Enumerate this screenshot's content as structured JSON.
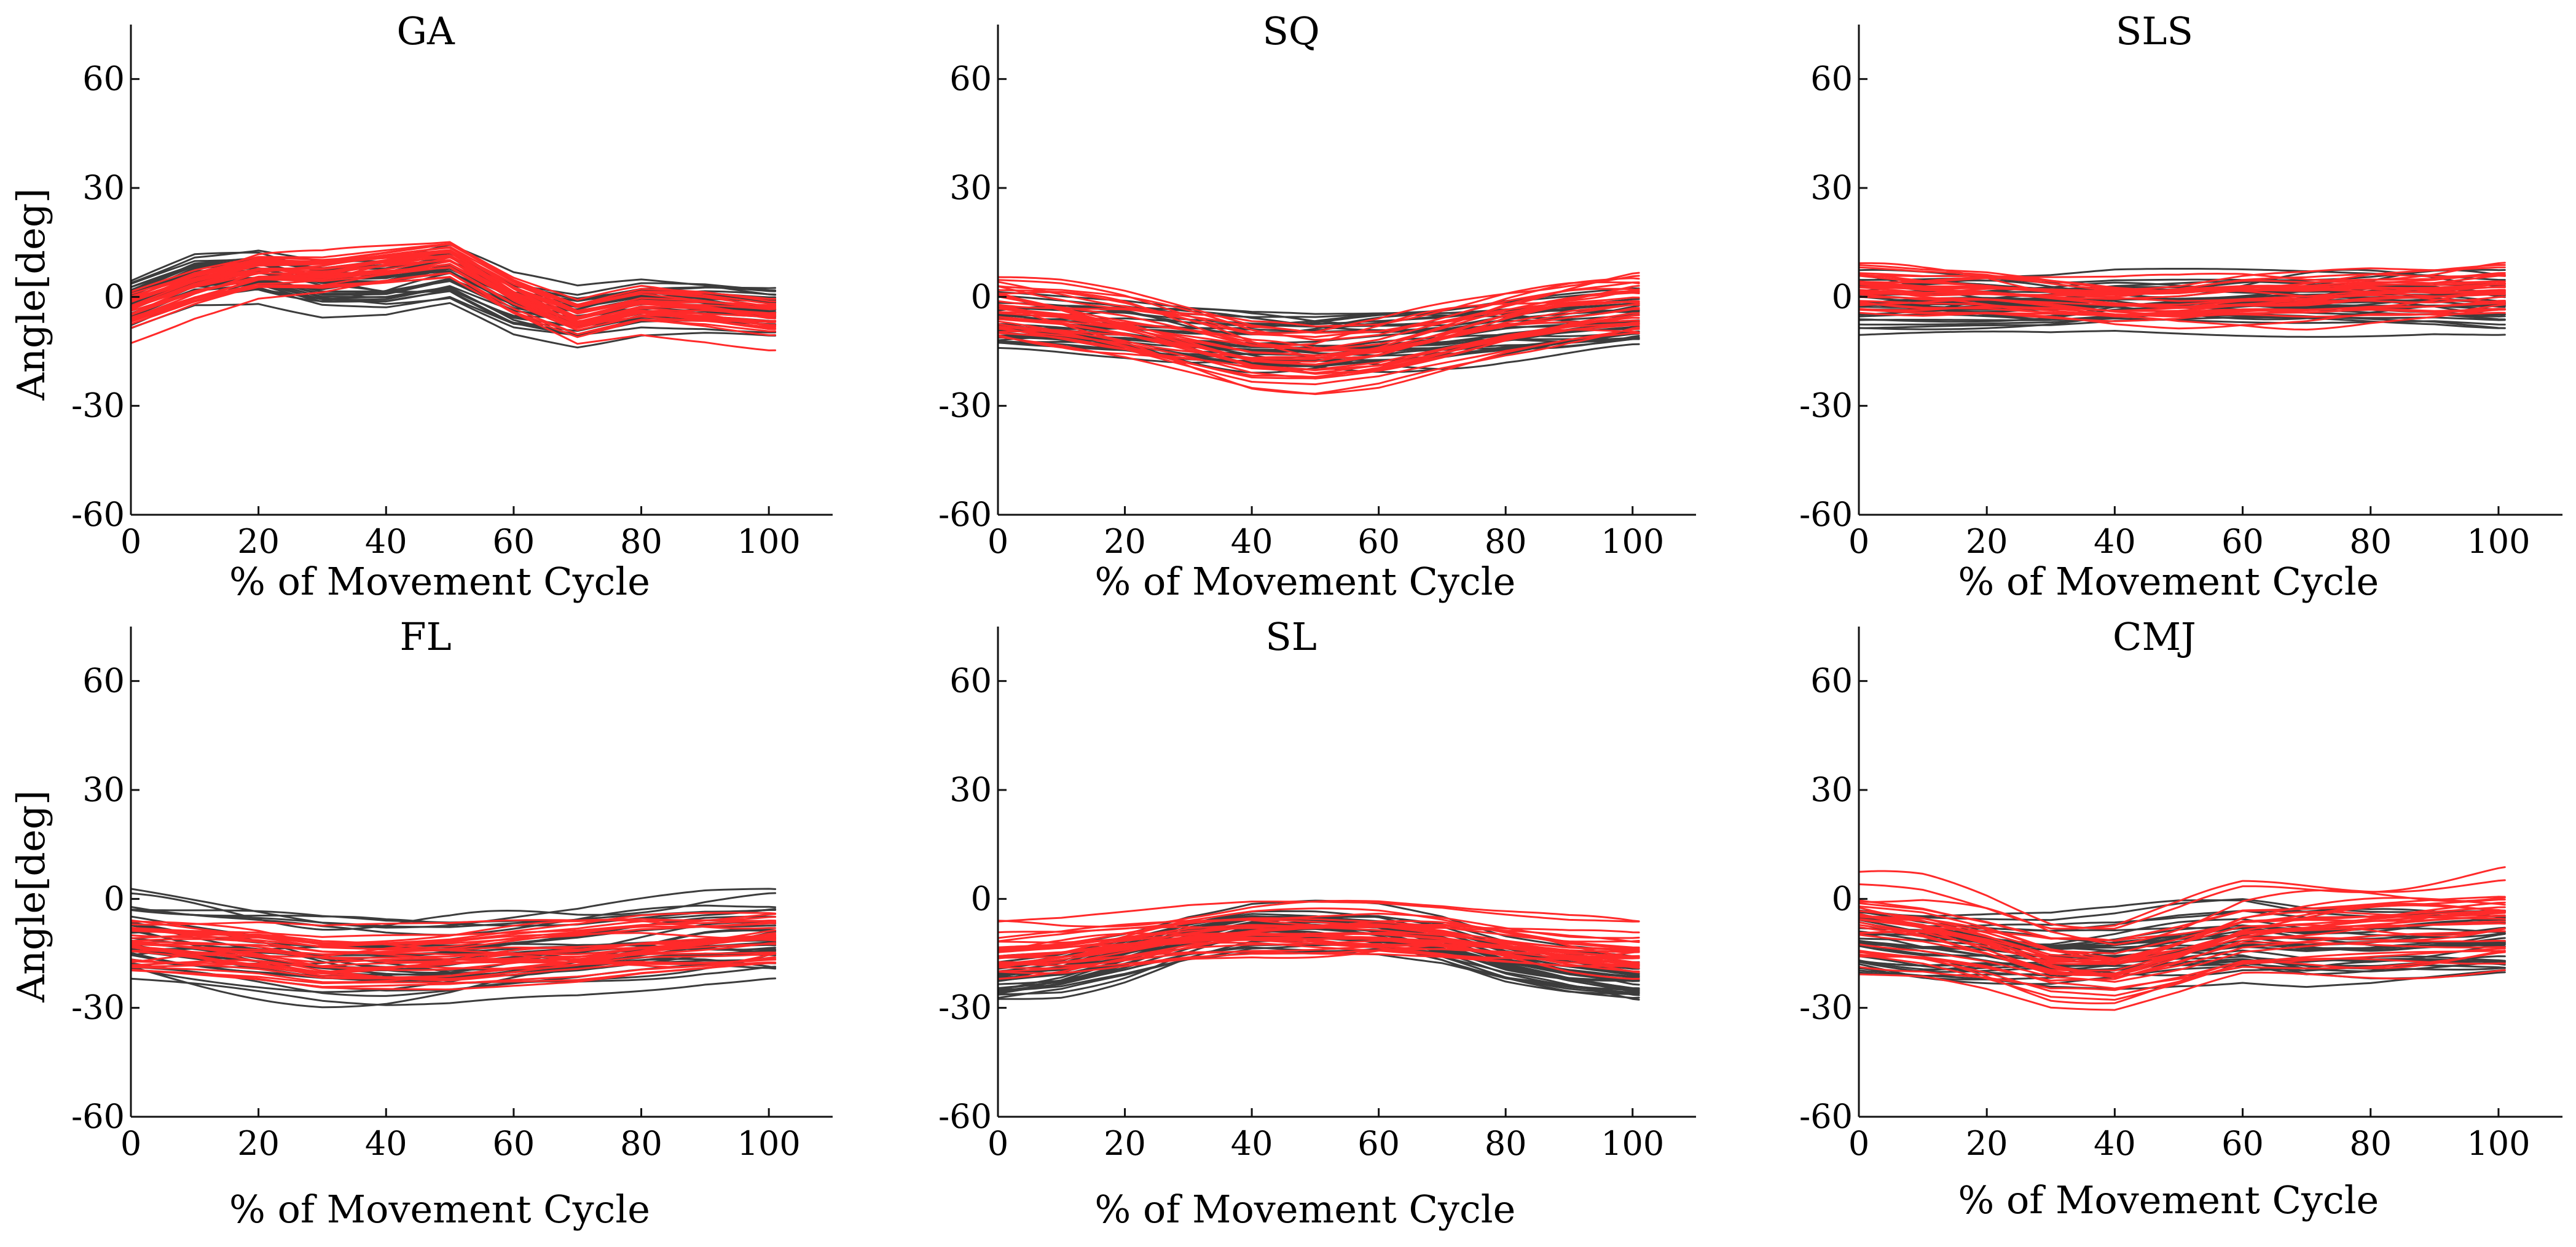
{
  "chart_data": [
    {
      "type": "line",
      "title": "GA",
      "xlabel": "% of Movement Cycle",
      "ylabel": "Angle[deg]",
      "xlim": [
        0,
        110
      ],
      "ylim": [
        -60,
        75
      ],
      "xticks": [
        0,
        20,
        40,
        60,
        80,
        100
      ],
      "yticks": [
        -60,
        -30,
        0,
        30,
        60
      ],
      "series": [
        {
          "name": "group-gray",
          "color": "#3c3c3c",
          "count": 30,
          "x": [
            0,
            10,
            20,
            30,
            40,
            50,
            60,
            70,
            80,
            90,
            100
          ],
          "mean": [
            -2,
            5,
            6,
            2,
            2,
            5,
            -3,
            -6,
            -3,
            -3,
            -4
          ],
          "spread": 7
        },
        {
          "name": "group-red",
          "color": "#ff2a2a",
          "count": 30,
          "x": [
            0,
            10,
            20,
            30,
            40,
            50,
            60,
            70,
            80,
            90,
            100
          ],
          "mean": [
            -4,
            2,
            6,
            6,
            8,
            10,
            0,
            -7,
            -3,
            -4,
            -6
          ],
          "spread": 6
        }
      ]
    },
    {
      "type": "line",
      "title": "SQ",
      "xlabel": "% of Movement Cycle",
      "ylabel": "",
      "xlim": [
        0,
        110
      ],
      "ylim": [
        -60,
        75
      ],
      "xticks": [
        0,
        20,
        40,
        60,
        80,
        100
      ],
      "yticks": [
        -60,
        -30,
        0,
        30,
        60
      ],
      "series": [
        {
          "name": "group-gray",
          "color": "#3c3c3c",
          "count": 30,
          "x": [
            0,
            10,
            20,
            30,
            40,
            50,
            60,
            70,
            80,
            90,
            100
          ],
          "mean": [
            -8,
            -9,
            -10,
            -12,
            -13,
            -13,
            -12,
            -11,
            -9,
            -8,
            -7
          ],
          "spread": 7
        },
        {
          "name": "group-red",
          "color": "#ff2a2a",
          "count": 30,
          "x": [
            0,
            10,
            20,
            30,
            40,
            50,
            60,
            70,
            80,
            90,
            100
          ],
          "mean": [
            -4,
            -6,
            -9,
            -13,
            -17,
            -18,
            -16,
            -12,
            -8,
            -5,
            -3
          ],
          "spread": 8
        }
      ]
    },
    {
      "type": "line",
      "title": "SLS",
      "xlabel": "% of Movement Cycle",
      "ylabel": "",
      "xlim": [
        0,
        110
      ],
      "ylim": [
        -60,
        75
      ],
      "xticks": [
        0,
        20,
        40,
        60,
        80,
        100
      ],
      "yticks": [
        -60,
        -30,
        0,
        30,
        60
      ],
      "series": [
        {
          "name": "group-gray",
          "color": "#3c3c3c",
          "count": 30,
          "x": [
            0,
            10,
            20,
            30,
            40,
            50,
            60,
            70,
            80,
            90,
            100
          ],
          "mean": [
            -2,
            -2,
            -2,
            -2,
            -1,
            -1,
            -1,
            -1,
            -1,
            -1,
            -2
          ],
          "spread": 7
        },
        {
          "name": "group-red",
          "color": "#ff2a2a",
          "count": 30,
          "x": [
            0,
            10,
            20,
            30,
            40,
            50,
            60,
            70,
            80,
            90,
            100
          ],
          "mean": [
            3,
            2,
            2,
            1,
            0,
            0,
            1,
            1,
            2,
            2,
            3
          ],
          "spread": 6
        }
      ]
    },
    {
      "type": "line",
      "title": "FL",
      "xlabel": "% of Movement Cycle",
      "ylabel": "Angle[deg]",
      "xlim": [
        0,
        110
      ],
      "ylim": [
        -60,
        75
      ],
      "xticks": [
        0,
        20,
        40,
        60,
        80,
        100
      ],
      "yticks": [
        -60,
        -30,
        0,
        30,
        60
      ],
      "series": [
        {
          "name": "group-gray",
          "color": "#3c3c3c",
          "count": 30,
          "x": [
            0,
            10,
            20,
            30,
            40,
            50,
            60,
            70,
            80,
            90,
            100
          ],
          "mean": [
            -10,
            -12,
            -14,
            -16,
            -17,
            -17,
            -16,
            -15,
            -13,
            -11,
            -10
          ],
          "spread": 10
        },
        {
          "name": "group-red",
          "color": "#ff2a2a",
          "count": 30,
          "x": [
            0,
            10,
            20,
            30,
            40,
            50,
            60,
            70,
            80,
            90,
            100
          ],
          "mean": [
            -14,
            -15,
            -16,
            -18,
            -18,
            -18,
            -17,
            -16,
            -14,
            -13,
            -12
          ],
          "spread": 8
        }
      ]
    },
    {
      "type": "line",
      "title": "SL",
      "xlabel": "% of Movement Cycle",
      "ylabel": "",
      "xlim": [
        0,
        110
      ],
      "ylim": [
        -60,
        75
      ],
      "xticks": [
        0,
        20,
        40,
        60,
        80,
        100
      ],
      "yticks": [
        -60,
        -30,
        0,
        30,
        60
      ],
      "series": [
        {
          "name": "group-gray",
          "color": "#3c3c3c",
          "count": 30,
          "x": [
            0,
            10,
            20,
            30,
            40,
            50,
            60,
            70,
            80,
            90,
            100
          ],
          "mean": [
            -22,
            -20,
            -16,
            -11,
            -8,
            -8,
            -9,
            -12,
            -17,
            -20,
            -22
          ],
          "spread": 6
        },
        {
          "name": "group-red",
          "color": "#ff2a2a",
          "count": 30,
          "x": [
            0,
            10,
            20,
            30,
            40,
            50,
            60,
            70,
            80,
            90,
            100
          ],
          "mean": [
            -15,
            -14,
            -12,
            -10,
            -9,
            -9,
            -9,
            -10,
            -12,
            -14,
            -15
          ],
          "spread": 7
        }
      ]
    },
    {
      "type": "line",
      "title": "CMJ",
      "xlabel": "% of Movement Cycle",
      "ylabel": "",
      "xlim": [
        0,
        110
      ],
      "ylim": [
        -60,
        75
      ],
      "xticks": [
        0,
        20,
        40,
        60,
        80,
        100
      ],
      "yticks": [
        -60,
        -30,
        0,
        30,
        60
      ],
      "series": [
        {
          "name": "group-gray",
          "color": "#3c3c3c",
          "count": 30,
          "x": [
            0,
            10,
            20,
            30,
            40,
            50,
            60,
            70,
            80,
            90,
            100
          ],
          "mean": [
            -10,
            -12,
            -13,
            -14,
            -13,
            -11,
            -10,
            -12,
            -12,
            -11,
            -10
          ],
          "spread": 8
        },
        {
          "name": "group-red",
          "color": "#ff2a2a",
          "count": 30,
          "x": [
            0,
            10,
            20,
            30,
            40,
            50,
            60,
            70,
            80,
            90,
            100
          ],
          "mean": [
            -6,
            -8,
            -12,
            -17,
            -18,
            -14,
            -9,
            -8,
            -7,
            -6,
            -5
          ],
          "spread": 9
        }
      ]
    }
  ]
}
